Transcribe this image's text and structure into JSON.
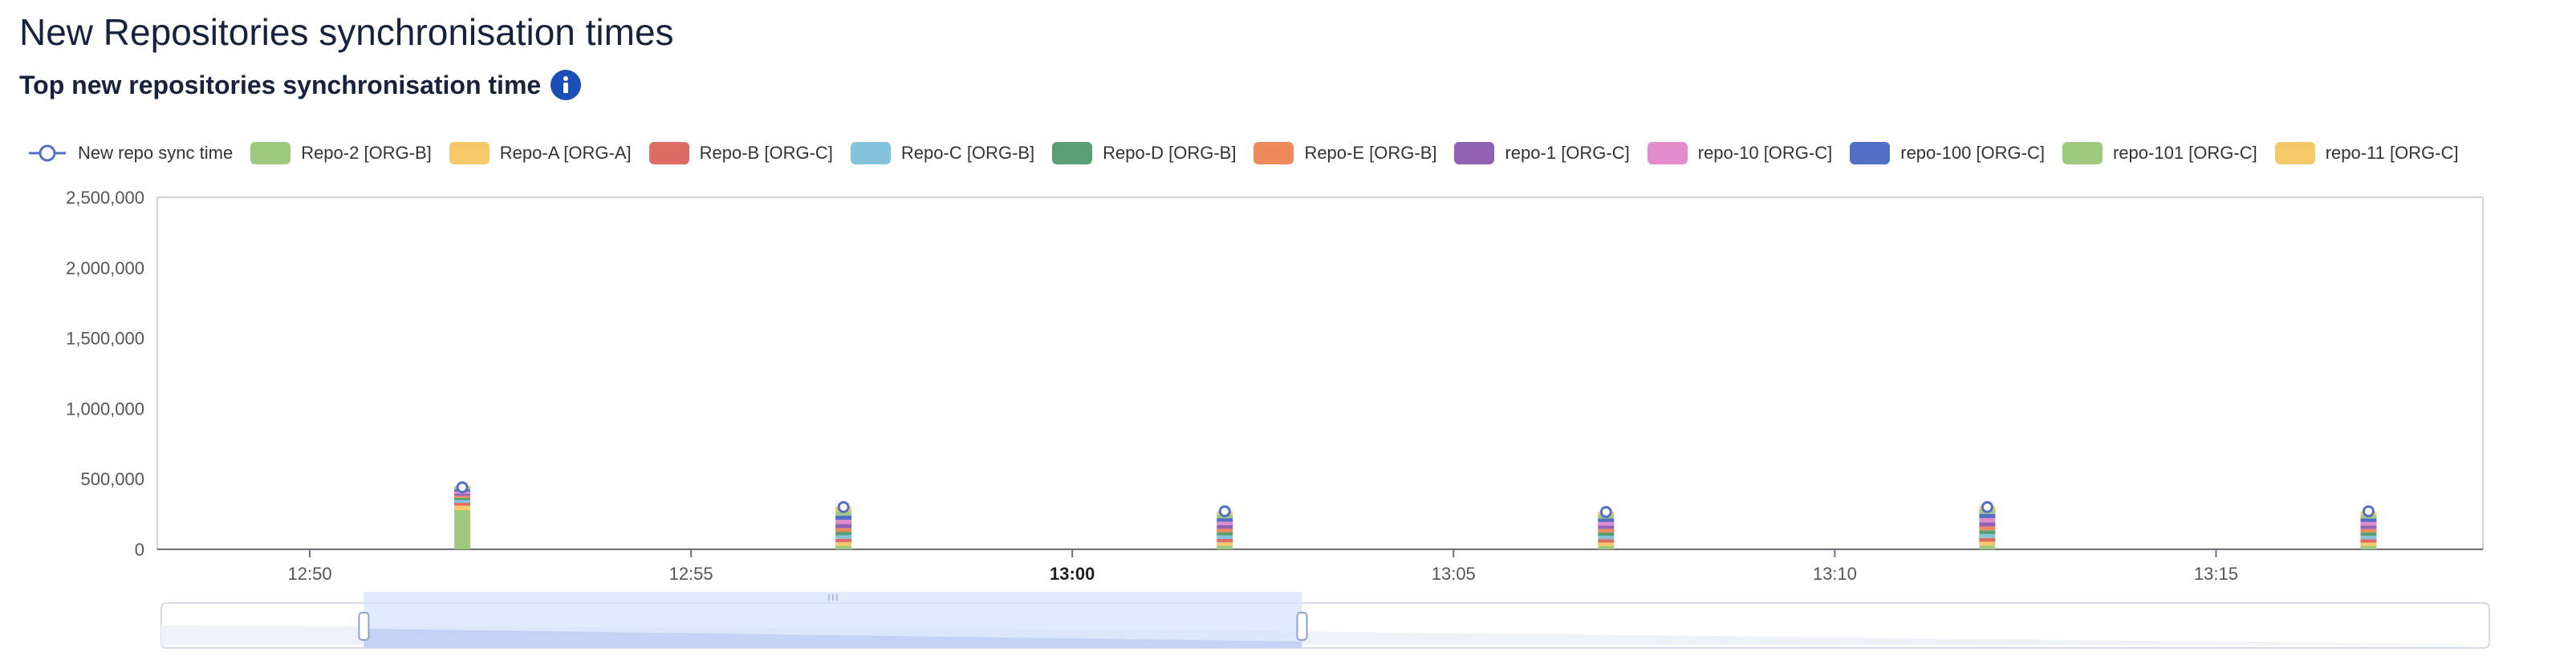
{
  "page": {
    "title": "New Repositories synchronisation times",
    "subtitle": "Top new repositories synchronisation time",
    "info_icon": "info-icon"
  },
  "colors": {
    "line": "#5470c6",
    "axis": "#6e7079",
    "grid_border": "#cfd3da",
    "info_button": "#1a4fb5",
    "zoom_fill": "#d6e2fb",
    "zoom_border": "#d3dbea"
  },
  "legend": [
    {
      "label": "New repo sync time",
      "kind": "line",
      "color": "#5470c6"
    },
    {
      "label": "Repo-2 [ORG-B]",
      "kind": "bar",
      "color": "#9fca7e"
    },
    {
      "label": "Repo-A [ORG-A]",
      "kind": "bar",
      "color": "#f5c96a"
    },
    {
      "label": "Repo-B [ORG-C]",
      "kind": "bar",
      "color": "#dd6b66"
    },
    {
      "label": "Repo-C [ORG-B]",
      "kind": "bar",
      "color": "#84c3dc"
    },
    {
      "label": "Repo-D [ORG-B]",
      "kind": "bar",
      "color": "#5a9e74"
    },
    {
      "label": "Repo-E [ORG-B]",
      "kind": "bar",
      "color": "#ee8a5b"
    },
    {
      "label": "repo-1 [ORG-C]",
      "kind": "bar",
      "color": "#9062b4"
    },
    {
      "label": "repo-10 [ORG-C]",
      "kind": "bar",
      "color": "#e28bcd"
    },
    {
      "label": "repo-100 [ORG-C]",
      "kind": "bar",
      "color": "#5470c6"
    },
    {
      "label": "repo-101 [ORG-C]",
      "kind": "bar",
      "color": "#9fca7e"
    },
    {
      "label": "repo-11 [ORG-C]",
      "kind": "bar",
      "color": "#f5c96a"
    }
  ],
  "chart_data": {
    "type": "bar",
    "stacked": true,
    "title": "Top new repositories synchronisation time",
    "x_axis": {
      "type": "time",
      "range": [
        "12:48",
        "13:18:30"
      ],
      "ticks": [
        "12:50",
        "12:55",
        "13:00",
        "13:05",
        "13:10",
        "13:15"
      ],
      "bold_ticks": [
        "13:00"
      ]
    },
    "y_axis": {
      "min": 0,
      "max": 2500000,
      "ticks": [
        0,
        500000,
        1000000,
        1500000,
        2000000,
        2500000
      ],
      "tick_labels": [
        "0",
        "500,000",
        "1,000,000",
        "1,500,000",
        "2,000,000",
        "2,500,000"
      ]
    },
    "x": [
      "12:52",
      "12:57",
      "13:02",
      "13:07",
      "13:12",
      "13:17"
    ],
    "line_series": {
      "name": "New repo sync time",
      "values": [
        440000,
        300000,
        270000,
        265000,
        300000,
        270000
      ]
    },
    "series": [
      {
        "name": "Repo-2 [ORG-B]",
        "values": [
          280000,
          25000,
          25000,
          24000,
          27000,
          24000
        ]
      },
      {
        "name": "Repo-A [ORG-A]",
        "values": [
          30000,
          25000,
          25000,
          24000,
          27000,
          24000
        ]
      },
      {
        "name": "Repo-B [ORG-C]",
        "values": [
          20000,
          25000,
          24000,
          24000,
          27000,
          24000
        ]
      },
      {
        "name": "Repo-C [ORG-B]",
        "values": [
          20000,
          25000,
          24000,
          24000,
          27000,
          24000
        ]
      },
      {
        "name": "Repo-D [ORG-B]",
        "values": [
          15000,
          25000,
          24000,
          24000,
          27000,
          24000
        ]
      },
      {
        "name": "Repo-E [ORG-B]",
        "values": [
          15000,
          25000,
          24000,
          24000,
          27000,
          24000
        ]
      },
      {
        "name": "repo-1 [ORG-C]",
        "values": [
          15000,
          30000,
          25000,
          25000,
          30000,
          25000
        ]
      },
      {
        "name": "repo-10 [ORG-C]",
        "values": [
          15000,
          30000,
          25000,
          25000,
          30000,
          25000
        ]
      },
      {
        "name": "repo-100 [ORG-C]",
        "values": [
          15000,
          30000,
          25000,
          25000,
          30000,
          25000
        ]
      },
      {
        "name": "repo-101 [ORG-C]",
        "values": [
          15000,
          30000,
          25000,
          25000,
          30000,
          25000
        ]
      },
      {
        "name": "repo-11 [ORG-C]",
        "values": [
          10000,
          30000,
          24000,
          21000,
          24000,
          22000
        ]
      }
    ],
    "data_zoom": {
      "start": 0.087,
      "end": 0.49
    }
  }
}
